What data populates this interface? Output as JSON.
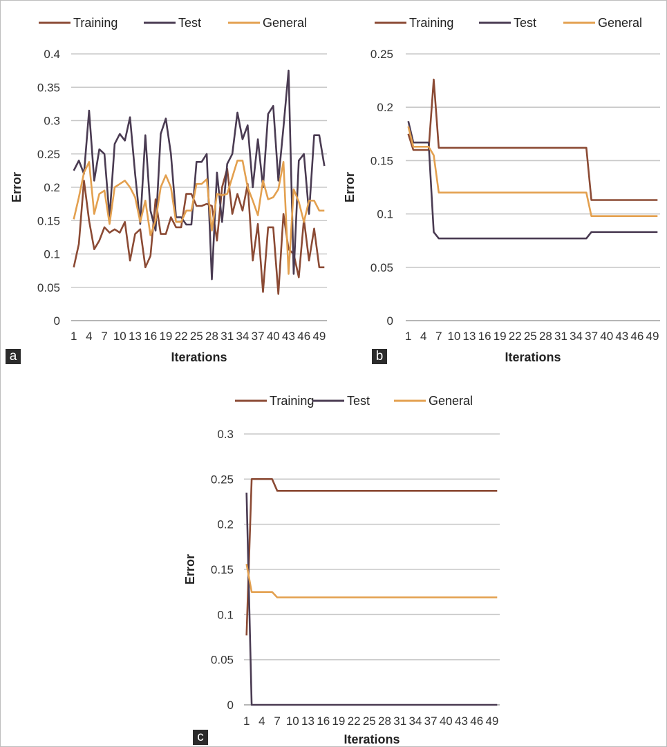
{
  "chart_data": [
    {
      "panel": "a",
      "type": "line",
      "xlabel": "Iterations",
      "ylabel": "Error",
      "ylim": [
        0,
        0.4
      ],
      "yticks": [
        "0",
        "0.05",
        "0.1",
        "0.15",
        "0.2",
        "0.25",
        "0.3",
        "0.35",
        "0.4"
      ],
      "x_tick_labels": [
        "1",
        "4",
        "7",
        "10",
        "13",
        "16",
        "19",
        "22",
        "25",
        "28",
        "31",
        "34",
        "37",
        "40",
        "43",
        "46",
        "49"
      ],
      "x_count": 50,
      "grid": true,
      "legend_position": "top",
      "series": [
        {
          "name": "Training",
          "color": "#8B4A34",
          "values": [
            0.08,
            0.115,
            0.21,
            0.15,
            0.107,
            0.12,
            0.14,
            0.132,
            0.137,
            0.132,
            0.148,
            0.09,
            0.13,
            0.137,
            0.08,
            0.097,
            0.182,
            0.13,
            0.13,
            0.155,
            0.14,
            0.14,
            0.19,
            0.19,
            0.172,
            0.172,
            0.175,
            0.172,
            0.12,
            0.2,
            0.228,
            0.16,
            0.19,
            0.165,
            0.205,
            0.09,
            0.145,
            0.043,
            0.14,
            0.14,
            0.04,
            0.16,
            0.107,
            0.1,
            0.065,
            0.152,
            0.09,
            0.138,
            0.08,
            0.08
          ]
        },
        {
          "name": "Test",
          "color": "#4A3B52",
          "values": [
            0.225,
            0.24,
            0.22,
            0.315,
            0.21,
            0.257,
            0.25,
            0.155,
            0.265,
            0.28,
            0.27,
            0.305,
            0.22,
            0.145,
            0.278,
            0.165,
            0.135,
            0.28,
            0.303,
            0.25,
            0.155,
            0.155,
            0.144,
            0.144,
            0.238,
            0.238,
            0.25,
            0.062,
            0.222,
            0.148,
            0.235,
            0.25,
            0.312,
            0.272,
            0.293,
            0.2,
            0.272,
            0.2,
            0.31,
            0.322,
            0.21,
            0.29,
            0.375,
            0.07,
            0.24,
            0.25,
            0.16,
            0.278,
            0.278,
            0.232
          ]
        },
        {
          "name": "General",
          "color": "#E3A04F",
          "values": [
            0.152,
            0.185,
            0.222,
            0.238,
            0.16,
            0.19,
            0.195,
            0.145,
            0.2,
            0.205,
            0.21,
            0.2,
            0.185,
            0.148,
            0.18,
            0.128,
            0.15,
            0.2,
            0.218,
            0.2,
            0.148,
            0.148,
            0.165,
            0.165,
            0.205,
            0.205,
            0.212,
            0.135,
            0.19,
            0.188,
            0.19,
            0.215,
            0.24,
            0.24,
            0.2,
            0.18,
            0.158,
            0.21,
            0.182,
            0.185,
            0.197,
            0.238,
            0.07,
            0.197,
            0.178,
            0.148,
            0.18,
            0.18,
            0.165,
            0.165
          ]
        }
      ]
    },
    {
      "panel": "b",
      "type": "line",
      "xlabel": "Iterations",
      "ylabel": "Error",
      "ylim": [
        0,
        0.25
      ],
      "yticks": [
        "0",
        "0.05",
        "0.1",
        "0.15",
        "0.2",
        "0.25"
      ],
      "x_tick_labels": [
        "1",
        "4",
        "7",
        "10",
        "13",
        "16",
        "19",
        "22",
        "25",
        "28",
        "31",
        "34",
        "37",
        "40",
        "43",
        "46",
        "49"
      ],
      "x_count": 50,
      "grid": true,
      "legend_position": "top",
      "series": [
        {
          "name": "Training",
          "color": "#8B4A34",
          "values": [
            0.175,
            0.16,
            0.16,
            0.16,
            0.16,
            0.226,
            0.162,
            0.162,
            0.162,
            0.162,
            0.162,
            0.162,
            0.162,
            0.162,
            0.162,
            0.162,
            0.162,
            0.162,
            0.162,
            0.162,
            0.162,
            0.162,
            0.162,
            0.162,
            0.162,
            0.162,
            0.162,
            0.162,
            0.162,
            0.162,
            0.162,
            0.162,
            0.162,
            0.162,
            0.162,
            0.162,
            0.113,
            0.113,
            0.113,
            0.113,
            0.113,
            0.113,
            0.113,
            0.113,
            0.113,
            0.113,
            0.113,
            0.113,
            0.113,
            0.113
          ]
        },
        {
          "name": "Test",
          "color": "#4A3B52",
          "values": [
            0.187,
            0.167,
            0.167,
            0.167,
            0.167,
            0.083,
            0.077,
            0.077,
            0.077,
            0.077,
            0.077,
            0.077,
            0.077,
            0.077,
            0.077,
            0.077,
            0.077,
            0.077,
            0.077,
            0.077,
            0.077,
            0.077,
            0.077,
            0.077,
            0.077,
            0.077,
            0.077,
            0.077,
            0.077,
            0.077,
            0.077,
            0.077,
            0.077,
            0.077,
            0.077,
            0.077,
            0.083,
            0.083,
            0.083,
            0.083,
            0.083,
            0.083,
            0.083,
            0.083,
            0.083,
            0.083,
            0.083,
            0.083,
            0.083,
            0.083
          ]
        },
        {
          "name": "General",
          "color": "#E3A04F",
          "values": [
            0.182,
            0.163,
            0.163,
            0.163,
            0.163,
            0.155,
            0.12,
            0.12,
            0.12,
            0.12,
            0.12,
            0.12,
            0.12,
            0.12,
            0.12,
            0.12,
            0.12,
            0.12,
            0.12,
            0.12,
            0.12,
            0.12,
            0.12,
            0.12,
            0.12,
            0.12,
            0.12,
            0.12,
            0.12,
            0.12,
            0.12,
            0.12,
            0.12,
            0.12,
            0.12,
            0.12,
            0.098,
            0.098,
            0.098,
            0.098,
            0.098,
            0.098,
            0.098,
            0.098,
            0.098,
            0.098,
            0.098,
            0.098,
            0.098,
            0.098
          ]
        }
      ]
    },
    {
      "panel": "c",
      "type": "line",
      "xlabel": "Iterations",
      "ylabel": "Error",
      "ylim": [
        0,
        0.3
      ],
      "yticks": [
        "0",
        "0.05",
        "0.1",
        "0.15",
        "0.2",
        "0.25",
        "0.3"
      ],
      "x_tick_labels": [
        "1",
        "4",
        "7",
        "10",
        "13",
        "16",
        "19",
        "22",
        "25",
        "28",
        "31",
        "34",
        "37",
        "40",
        "43",
        "46",
        "49"
      ],
      "x_count": 50,
      "grid": true,
      "legend_position": "top",
      "series": [
        {
          "name": "Training",
          "color": "#8B4A34",
          "values": [
            0.077,
            0.25,
            0.25,
            0.25,
            0.25,
            0.25,
            0.237,
            0.237,
            0.237,
            0.237,
            0.237,
            0.237,
            0.237,
            0.237,
            0.237,
            0.237,
            0.237,
            0.237,
            0.237,
            0.237,
            0.237,
            0.237,
            0.237,
            0.237,
            0.237,
            0.237,
            0.237,
            0.237,
            0.237,
            0.237,
            0.237,
            0.237,
            0.237,
            0.237,
            0.237,
            0.237,
            0.237,
            0.237,
            0.237,
            0.237,
            0.237,
            0.237,
            0.237,
            0.237,
            0.237,
            0.237,
            0.237,
            0.237,
            0.237,
            0.237
          ]
        },
        {
          "name": "Test",
          "color": "#4A3B52",
          "values": [
            0.235,
            0,
            0,
            0,
            0,
            0,
            0,
            0,
            0,
            0,
            0,
            0,
            0,
            0,
            0,
            0,
            0,
            0,
            0,
            0,
            0,
            0,
            0,
            0,
            0,
            0,
            0,
            0,
            0,
            0,
            0,
            0,
            0,
            0,
            0,
            0,
            0,
            0,
            0,
            0,
            0,
            0,
            0,
            0,
            0,
            0,
            0,
            0,
            0,
            0
          ]
        },
        {
          "name": "General",
          "color": "#E3A04F",
          "values": [
            0.156,
            0.125,
            0.125,
            0.125,
            0.125,
            0.125,
            0.119,
            0.119,
            0.119,
            0.119,
            0.119,
            0.119,
            0.119,
            0.119,
            0.119,
            0.119,
            0.119,
            0.119,
            0.119,
            0.119,
            0.119,
            0.119,
            0.119,
            0.119,
            0.119,
            0.119,
            0.119,
            0.119,
            0.119,
            0.119,
            0.119,
            0.119,
            0.119,
            0.119,
            0.119,
            0.119,
            0.119,
            0.119,
            0.119,
            0.119,
            0.119,
            0.119,
            0.119,
            0.119,
            0.119,
            0.119,
            0.119,
            0.119,
            0.119,
            0.119
          ]
        }
      ]
    }
  ]
}
